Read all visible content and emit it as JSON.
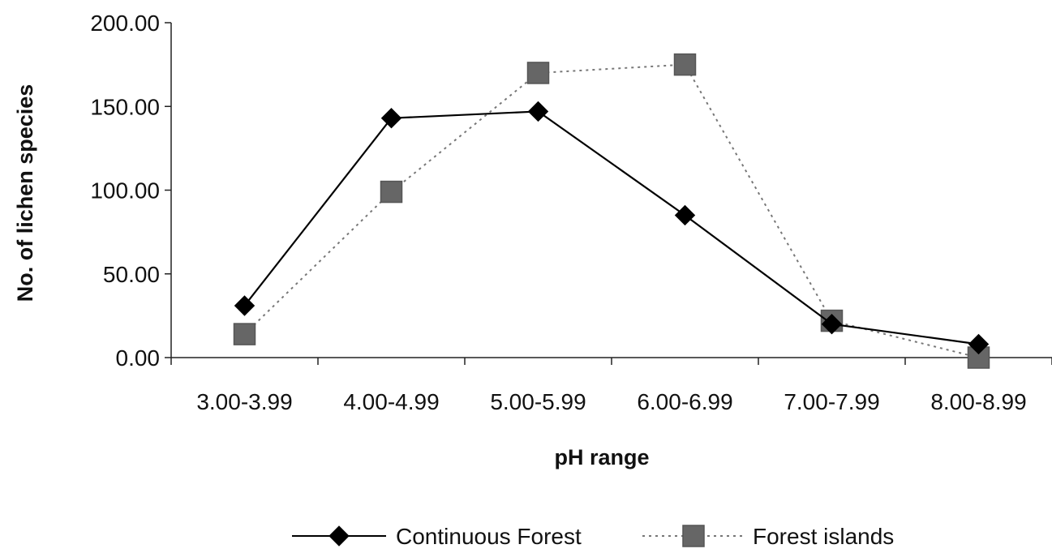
{
  "chart_data": {
    "type": "line",
    "title": "",
    "xlabel": "pH range",
    "ylabel": "No. of lichen species",
    "categories": [
      "3.00-3.99",
      "4.00-4.99",
      "5.00-5.99",
      "6.00-6.99",
      "7.00-7.99",
      "8.00-8.99"
    ],
    "ylim": [
      0,
      200
    ],
    "yticks": [
      "0.00",
      "50.00",
      "100.00",
      "150.00",
      "200.00"
    ],
    "grid": false,
    "legend_position": "bottom",
    "series": [
      {
        "name": "Continuous Forest",
        "values": [
          31,
          143,
          147,
          85,
          20,
          8
        ],
        "line_style": "solid",
        "marker": "diamond",
        "color": "#000000"
      },
      {
        "name": "Forest islands",
        "values": [
          14,
          99,
          170,
          175,
          22,
          0
        ],
        "line_style": "dotted",
        "marker": "square",
        "color": "#666666"
      }
    ]
  }
}
